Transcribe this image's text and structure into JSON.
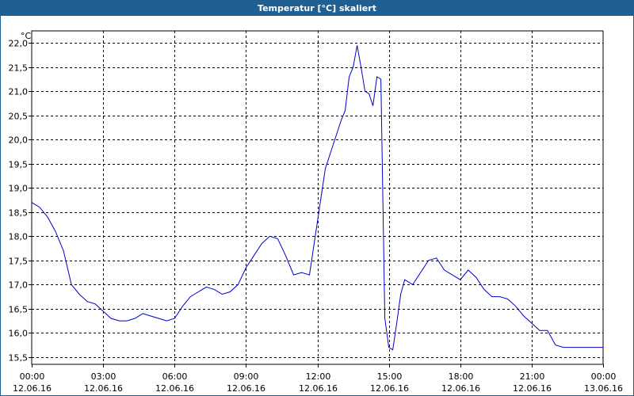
{
  "title": "Temperatur [°C] skaliert",
  "colors": {
    "titlebar": "#1f5f92",
    "line": "#0000cc",
    "grid": "#000000"
  },
  "chart_data": {
    "type": "line",
    "title": "Temperatur [°C] skaliert",
    "ylabel": "°C",
    "xlabel": "",
    "grid": true,
    "ylim": [
      15.35,
      22.25
    ],
    "xlim": [
      "2016-06-12 00:00",
      "2016-06-13 00:00"
    ],
    "y_ticks": [
      "15,5",
      "16,0",
      "16,5",
      "17,0",
      "17,5",
      "18,0",
      "18,5",
      "19,0",
      "19,5",
      "20,0",
      "20,5",
      "21,0",
      "21,5",
      "22,0"
    ],
    "x_ticks": [
      {
        "time": "00:00",
        "date": "12.06.16"
      },
      {
        "time": "03:00",
        "date": "12.06.16"
      },
      {
        "time": "06:00",
        "date": "12.06.16"
      },
      {
        "time": "09:00",
        "date": "12.06.16"
      },
      {
        "time": "12:00",
        "date": "12.06.16"
      },
      {
        "time": "15:00",
        "date": "12.06.16"
      },
      {
        "time": "18:00",
        "date": "12.06.16"
      },
      {
        "time": "21:00",
        "date": "12.06.16"
      },
      {
        "time": "00:00",
        "date": "13.06.16"
      }
    ],
    "series": [
      {
        "x": [
          "2016-06-12 00:00",
          "2016-06-12 00:20",
          "2016-06-12 00:40",
          "2016-06-12 01:00",
          "2016-06-12 01:20",
          "2016-06-12 01:40",
          "2016-06-12 02:00",
          "2016-06-12 02:20",
          "2016-06-12 02:40",
          "2016-06-12 03:00",
          "2016-06-12 03:20",
          "2016-06-12 03:40",
          "2016-06-12 04:00",
          "2016-06-12 04:20",
          "2016-06-12 04:40",
          "2016-06-12 05:00",
          "2016-06-12 05:20",
          "2016-06-12 05:40",
          "2016-06-12 06:00",
          "2016-06-12 06:20",
          "2016-06-12 06:40",
          "2016-06-12 07:00",
          "2016-06-12 07:20",
          "2016-06-12 07:40",
          "2016-06-12 08:00",
          "2016-06-12 08:20",
          "2016-06-12 08:40",
          "2016-06-12 09:00",
          "2016-06-12 09:20",
          "2016-06-12 09:40",
          "2016-06-12 10:00",
          "2016-06-12 10:20",
          "2016-06-12 10:40",
          "2016-06-12 11:00",
          "2016-06-12 11:20",
          "2016-06-12 11:40",
          "2016-06-12 12:00",
          "2016-06-12 12:20",
          "2016-06-12 12:40",
          "2016-06-12 13:00",
          "2016-06-12 13:10",
          "2016-06-12 13:20",
          "2016-06-12 13:30",
          "2016-06-12 13:40",
          "2016-06-12 13:50",
          "2016-06-12 14:00",
          "2016-06-12 14:10",
          "2016-06-12 14:20",
          "2016-06-12 14:30",
          "2016-06-12 14:40",
          "2016-06-12 14:50",
          "2016-06-12 15:00",
          "2016-06-12 15:10",
          "2016-06-12 15:20",
          "2016-06-12 15:30",
          "2016-06-12 15:40",
          "2016-06-12 16:00",
          "2016-06-12 16:20",
          "2016-06-12 16:40",
          "2016-06-12 17:00",
          "2016-06-12 17:20",
          "2016-06-12 17:40",
          "2016-06-12 18:00",
          "2016-06-12 18:20",
          "2016-06-12 18:40",
          "2016-06-12 19:00",
          "2016-06-12 19:20",
          "2016-06-12 19:40",
          "2016-06-12 20:00",
          "2016-06-12 20:20",
          "2016-06-12 20:40",
          "2016-06-12 21:00",
          "2016-06-12 21:20",
          "2016-06-12 21:40",
          "2016-06-12 22:00",
          "2016-06-12 22:20",
          "2016-06-12 22:40",
          "2016-06-12 23:00",
          "2016-06-12 23:20",
          "2016-06-12 23:40",
          "2016-06-13 00:00"
        ],
        "values": [
          18.7,
          18.6,
          18.4,
          18.1,
          17.7,
          17.0,
          16.8,
          16.65,
          16.6,
          16.45,
          16.3,
          16.25,
          16.25,
          16.3,
          16.4,
          16.35,
          16.3,
          16.25,
          16.3,
          16.55,
          16.75,
          16.85,
          16.95,
          16.9,
          16.8,
          16.85,
          17.0,
          17.35,
          17.6,
          17.85,
          18.0,
          17.95,
          17.6,
          17.2,
          17.25,
          17.2,
          18.3,
          19.4,
          19.9,
          20.4,
          20.6,
          21.3,
          21.5,
          21.95,
          21.5,
          21.0,
          20.95,
          20.7,
          21.3,
          21.25,
          16.3,
          15.7,
          15.65,
          16.2,
          16.8,
          17.1,
          17.0,
          17.25,
          17.5,
          17.55,
          17.3,
          17.2,
          17.1,
          17.3,
          17.15,
          16.9,
          16.75,
          16.75,
          16.7,
          16.55,
          16.35,
          16.2,
          16.05,
          16.05,
          15.75,
          15.7,
          15.7,
          15.7,
          15.7,
          15.7,
          15.7
        ]
      }
    ]
  }
}
